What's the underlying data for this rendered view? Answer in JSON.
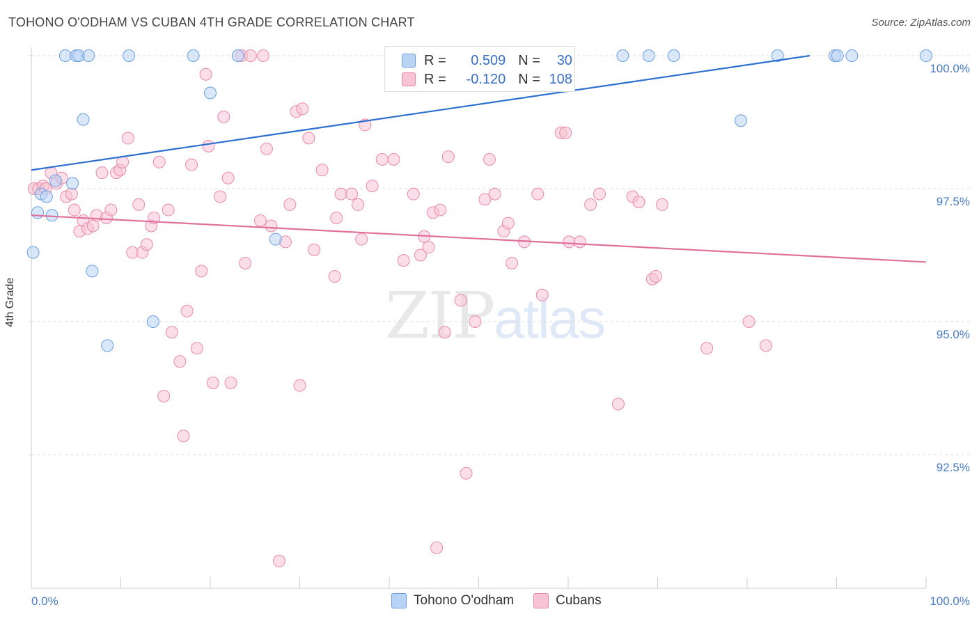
{
  "title": "TOHONO O'ODHAM VS CUBAN 4TH GRADE CORRELATION CHART",
  "source": "Source: ZipAtlas.com",
  "watermark": {
    "zip": "ZIP",
    "atlas": "atlas"
  },
  "legend": {
    "r_label": "R =",
    "n_label": "N =",
    "series": [
      {
        "name": "Tohono O'odham",
        "r": "0.509",
        "n": "30",
        "color": "#6a9ee0",
        "fill": "#b9d3f5"
      },
      {
        "name": "Cubans",
        "r": "-0.120",
        "n": "108",
        "color": "#e98aa8",
        "fill": "#f8c3d4"
      }
    ]
  },
  "chart_data": {
    "type": "scatter",
    "title": "TOHONO O'ODHAM VS CUBAN 4TH GRADE CORRELATION CHART",
    "xlabel": "",
    "ylabel": "4th Grade",
    "xlim": [
      0,
      100
    ],
    "ylim": [
      90.0,
      100.3
    ],
    "x_tick_labels": [
      "0.0%",
      "100.0%"
    ],
    "y_ticks": [
      100.0,
      97.5,
      95.0,
      92.5
    ],
    "y_tick_labels": [
      "100.0%",
      "97.5%",
      "95.0%",
      "92.5%"
    ],
    "series": [
      {
        "name": "Tohono O'odham",
        "color": "#6a9ee0",
        "trend": {
          "x": [
            0,
            87
          ],
          "y": [
            97.85,
            100.0
          ]
        },
        "points": [
          [
            0.2,
            96.3
          ],
          [
            0.7,
            97.05
          ],
          [
            1.1,
            97.4
          ],
          [
            1.7,
            97.35
          ],
          [
            2.3,
            97.0
          ],
          [
            2.7,
            97.65
          ],
          [
            4.6,
            97.6
          ],
          [
            3.8,
            100.0
          ],
          [
            5.0,
            100.0
          ],
          [
            5.3,
            100.0
          ],
          [
            6.4,
            100.0
          ],
          [
            5.8,
            98.8
          ],
          [
            6.8,
            95.95
          ],
          [
            8.5,
            94.55
          ],
          [
            10.9,
            100.0
          ],
          [
            13.6,
            95.0
          ],
          [
            18.1,
            100.0
          ],
          [
            20.0,
            99.3
          ],
          [
            23.1,
            100.0
          ],
          [
            27.3,
            96.55
          ],
          [
            47.4,
            100.0
          ],
          [
            66.1,
            100.0
          ],
          [
            69.0,
            100.0
          ],
          [
            71.8,
            100.0
          ],
          [
            79.3,
            98.78
          ],
          [
            83.4,
            100.0
          ],
          [
            89.8,
            100.0
          ],
          [
            90.1,
            100.0
          ],
          [
            91.7,
            100.0
          ],
          [
            100.0,
            100.0
          ]
        ]
      },
      {
        "name": "Cubans",
        "color": "#e98aa8",
        "trend": {
          "x": [
            0,
            100
          ],
          "y": [
            97.0,
            96.12
          ]
        },
        "points": [
          [
            0.3,
            97.5
          ],
          [
            0.8,
            97.5
          ],
          [
            1.3,
            97.55
          ],
          [
            1.6,
            97.5
          ],
          [
            2.2,
            97.8
          ],
          [
            2.8,
            97.6
          ],
          [
            3.4,
            97.7
          ],
          [
            3.9,
            97.35
          ],
          [
            4.5,
            97.4
          ],
          [
            4.8,
            97.1
          ],
          [
            5.4,
            96.7
          ],
          [
            5.8,
            96.9
          ],
          [
            6.3,
            96.75
          ],
          [
            6.9,
            96.8
          ],
          [
            7.3,
            97.0
          ],
          [
            7.9,
            97.8
          ],
          [
            8.4,
            96.95
          ],
          [
            8.9,
            97.1
          ],
          [
            9.5,
            97.8
          ],
          [
            9.9,
            97.85
          ],
          [
            10.2,
            98.0
          ],
          [
            10.8,
            98.45
          ],
          [
            11.3,
            96.3
          ],
          [
            12.0,
            97.2
          ],
          [
            12.4,
            96.3
          ],
          [
            12.9,
            96.45
          ],
          [
            13.4,
            96.8
          ],
          [
            13.7,
            96.95
          ],
          [
            14.3,
            98.0
          ],
          [
            14.8,
            93.6
          ],
          [
            15.3,
            97.1
          ],
          [
            15.7,
            94.8
          ],
          [
            16.6,
            94.25
          ],
          [
            17.0,
            92.85
          ],
          [
            17.4,
            95.2
          ],
          [
            17.9,
            97.95
          ],
          [
            18.5,
            94.5
          ],
          [
            19.0,
            95.95
          ],
          [
            19.5,
            99.65
          ],
          [
            19.8,
            98.3
          ],
          [
            20.3,
            93.85
          ],
          [
            21.1,
            97.35
          ],
          [
            21.5,
            98.85
          ],
          [
            22.0,
            97.7
          ],
          [
            22.3,
            93.85
          ],
          [
            23.5,
            100.0
          ],
          [
            23.9,
            96.1
          ],
          [
            24.5,
            100.0
          ],
          [
            25.6,
            96.9
          ],
          [
            25.9,
            100.0
          ],
          [
            26.3,
            98.25
          ],
          [
            26.8,
            96.8
          ],
          [
            27.7,
            90.5
          ],
          [
            28.4,
            96.5
          ],
          [
            28.9,
            97.2
          ],
          [
            29.6,
            98.95
          ],
          [
            30.0,
            93.8
          ],
          [
            30.3,
            99.0
          ],
          [
            31.0,
            98.45
          ],
          [
            31.6,
            96.35
          ],
          [
            32.5,
            97.85
          ],
          [
            33.9,
            95.85
          ],
          [
            34.1,
            96.95
          ],
          [
            34.6,
            97.4
          ],
          [
            35.8,
            97.4
          ],
          [
            36.5,
            97.2
          ],
          [
            36.9,
            96.55
          ],
          [
            37.3,
            98.7
          ],
          [
            38.1,
            97.55
          ],
          [
            39.2,
            98.05
          ],
          [
            40.5,
            98.05
          ],
          [
            41.6,
            96.15
          ],
          [
            42.7,
            97.4
          ],
          [
            43.5,
            96.25
          ],
          [
            43.9,
            96.6
          ],
          [
            44.4,
            96.4
          ],
          [
            44.9,
            97.05
          ],
          [
            45.3,
            90.75
          ],
          [
            45.7,
            97.1
          ],
          [
            46.2,
            94.8
          ],
          [
            46.6,
            98.1
          ],
          [
            48.0,
            95.4
          ],
          [
            48.6,
            92.15
          ],
          [
            49.6,
            95.0
          ],
          [
            50.7,
            97.3
          ],
          [
            51.2,
            98.05
          ],
          [
            51.8,
            97.4
          ],
          [
            52.8,
            96.7
          ],
          [
            53.3,
            96.85
          ],
          [
            53.7,
            96.1
          ],
          [
            55.1,
            96.5
          ],
          [
            56.6,
            97.4
          ],
          [
            57.1,
            95.5
          ],
          [
            59.2,
            98.55
          ],
          [
            59.7,
            98.55
          ],
          [
            60.1,
            96.5
          ],
          [
            61.3,
            96.5
          ],
          [
            62.5,
            97.2
          ],
          [
            63.5,
            97.4
          ],
          [
            65.6,
            93.45
          ],
          [
            67.2,
            97.35
          ],
          [
            67.9,
            97.25
          ],
          [
            69.4,
            95.8
          ],
          [
            69.8,
            95.85
          ],
          [
            70.5,
            97.2
          ],
          [
            75.5,
            94.5
          ],
          [
            80.2,
            95.0
          ],
          [
            82.1,
            94.55
          ]
        ]
      }
    ]
  }
}
